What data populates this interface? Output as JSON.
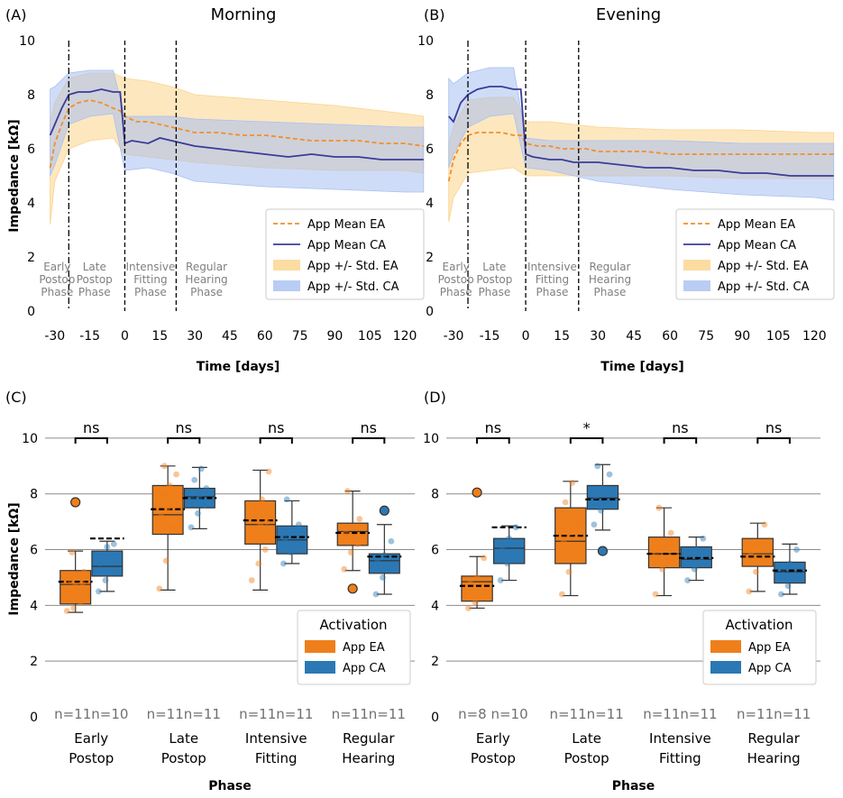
{
  "colors": {
    "ea": "#f28e2b",
    "ea_box": "#ef7f1a",
    "ca_line": "#3b3b98",
    "ca_box": "#2b78b4",
    "ea_band": "#fbd38a",
    "ca_band": "#a8bff0",
    "grid": "#8c8c8c",
    "phase_text": "#808080"
  },
  "panels": {
    "A": {
      "letter": "(A)",
      "title": "Morning"
    },
    "B": {
      "letter": "(B)",
      "title": "Evening"
    },
    "C": {
      "letter": "(C)"
    },
    "D": {
      "letter": "(D)"
    }
  },
  "chart_data": [
    {
      "id": "A",
      "type": "line",
      "title": "Morning",
      "xlabel": "Time [days]",
      "ylabel": "Impedance [kΩ]",
      "xlim": [
        -33,
        130
      ],
      "ylim": [
        0,
        10
      ],
      "xticks": [
        -30,
        -15,
        0,
        15,
        30,
        45,
        60,
        75,
        90,
        105,
        120
      ],
      "xtick_labels": [
        "-30",
        "-15",
        "0",
        "15",
        "30",
        "45",
        "60",
        "75",
        "90",
        "105",
        "120"
      ],
      "yticks": [
        0,
        2,
        4,
        6,
        8,
        10
      ],
      "ytick_labels": [
        "0",
        "2",
        "4",
        "6",
        "8",
        "10"
      ],
      "phase_lines": [
        {
          "x": -24,
          "style": "dashdot"
        },
        {
          "x": 0,
          "style": "dashed"
        },
        {
          "x": 22,
          "style": "dashed"
        }
      ],
      "phase_labels": [
        {
          "x": -29,
          "lines": [
            "Early",
            "Postop",
            "Phase"
          ]
        },
        {
          "x": -13,
          "lines": [
            "Late",
            "Postop",
            "Phase"
          ]
        },
        {
          "x": 11,
          "lines": [
            "Intensive",
            "Fitting",
            "Phase"
          ]
        },
        {
          "x": 35,
          "lines": [
            "Regular",
            "Hearing",
            "Phase"
          ]
        }
      ],
      "legend": {
        "position": "lower-right",
        "entries": [
          "App Mean EA",
          "App Mean CA",
          "App +/- Std. EA",
          "App +/- Std. CA"
        ]
      },
      "series": [
        {
          "name": "App Mean EA",
          "x": [
            -32,
            -30,
            -27,
            -24,
            -20,
            -15,
            -10,
            -5,
            -2,
            0,
            5,
            10,
            15,
            20,
            25,
            30,
            40,
            50,
            60,
            70,
            80,
            90,
            100,
            110,
            120,
            128
          ],
          "y": [
            5.3,
            6.2,
            6.9,
            7.5,
            7.7,
            7.8,
            7.7,
            7.5,
            7.4,
            7.2,
            7.0,
            7.0,
            6.9,
            6.8,
            6.7,
            6.6,
            6.6,
            6.5,
            6.5,
            6.4,
            6.3,
            6.3,
            6.3,
            6.2,
            6.2,
            6.1
          ]
        },
        {
          "name": "App Mean CA",
          "x": [
            -32,
            -30,
            -27,
            -24,
            -20,
            -15,
            -10,
            -5,
            -2,
            0,
            3,
            10,
            15,
            20,
            25,
            30,
            40,
            50,
            60,
            70,
            80,
            90,
            100,
            110,
            120,
            128
          ],
          "y": [
            6.5,
            6.9,
            7.5,
            8.0,
            8.1,
            8.1,
            8.2,
            8.1,
            8.1,
            6.2,
            6.3,
            6.2,
            6.4,
            6.3,
            6.2,
            6.1,
            6.0,
            5.9,
            5.8,
            5.7,
            5.8,
            5.7,
            5.7,
            5.6,
            5.6,
            5.6
          ]
        },
        {
          "name": "App +/- Std. EA",
          "x": [
            -32,
            -30,
            -24,
            -15,
            -5,
            0,
            10,
            20,
            30,
            60,
            90,
            120,
            128
          ],
          "lower": [
            3.2,
            4.8,
            6.0,
            6.3,
            6.4,
            5.8,
            5.7,
            5.6,
            5.5,
            5.3,
            5.2,
            5.2,
            5.1
          ],
          "upper": [
            7.0,
            7.7,
            8.6,
            8.8,
            8.8,
            8.6,
            8.5,
            8.3,
            8.0,
            7.8,
            7.6,
            7.3,
            7.2
          ]
        },
        {
          "name": "App +/- Std. CA",
          "x": [
            -32,
            -30,
            -24,
            -15,
            -5,
            0,
            10,
            20,
            30,
            60,
            90,
            120,
            128
          ],
          "lower": [
            5.0,
            5.4,
            6.9,
            7.2,
            7.3,
            5.2,
            5.3,
            5.1,
            4.8,
            4.6,
            4.5,
            4.4,
            4.4
          ],
          "upper": [
            8.2,
            8.3,
            8.8,
            8.9,
            8.9,
            7.2,
            7.2,
            7.2,
            7.1,
            7.0,
            6.9,
            6.8,
            6.8
          ]
        }
      ]
    },
    {
      "id": "B",
      "type": "line",
      "title": "Evening",
      "xlabel": "Time [days]",
      "ylabel": "",
      "xlim": [
        -33,
        130
      ],
      "ylim": [
        0,
        10
      ],
      "xticks": [
        -30,
        -15,
        0,
        15,
        30,
        45,
        60,
        75,
        90,
        105,
        120
      ],
      "xtick_labels": [
        "-30",
        "-15",
        "0",
        "15",
        "30",
        "45",
        "60",
        "75",
        "90",
        "105",
        "120"
      ],
      "yticks": [
        0,
        2,
        4,
        6,
        8,
        10
      ],
      "ytick_labels": [
        "0",
        "2",
        "4",
        "6",
        "8",
        "10"
      ],
      "phase_lines": [
        {
          "x": -24,
          "style": "dashdot"
        },
        {
          "x": 0,
          "style": "dashed"
        },
        {
          "x": 22,
          "style": "dashed"
        }
      ],
      "phase_labels": [
        {
          "x": -29,
          "lines": [
            "Early",
            "Postop",
            "Phase"
          ]
        },
        {
          "x": -13,
          "lines": [
            "Late",
            "Postop",
            "Phase"
          ]
        },
        {
          "x": 11,
          "lines": [
            "Intensive",
            "Fitting",
            "Phase"
          ]
        },
        {
          "x": 35,
          "lines": [
            "Regular",
            "Hearing",
            "Phase"
          ]
        }
      ],
      "legend": {
        "position": "lower-right",
        "entries": [
          "App Mean EA",
          "App Mean CA",
          "App +/- Std. EA",
          "App +/- Std. CA"
        ]
      },
      "series": [
        {
          "name": "App Mean EA",
          "x": [
            -32,
            -30,
            -27,
            -24,
            -20,
            -15,
            -10,
            -5,
            -2,
            0,
            5,
            10,
            15,
            20,
            25,
            30,
            40,
            50,
            60,
            70,
            80,
            90,
            100,
            110,
            120,
            128
          ],
          "y": [
            4.8,
            5.6,
            6.2,
            6.5,
            6.6,
            6.6,
            6.6,
            6.5,
            6.5,
            6.2,
            6.1,
            6.1,
            6.0,
            6.0,
            6.0,
            5.9,
            5.9,
            5.9,
            5.8,
            5.8,
            5.8,
            5.8,
            5.8,
            5.8,
            5.8,
            5.8
          ]
        },
        {
          "name": "App Mean CA",
          "x": [
            -32,
            -30,
            -27,
            -24,
            -20,
            -15,
            -10,
            -5,
            -2,
            0,
            3,
            10,
            15,
            20,
            25,
            30,
            40,
            50,
            60,
            70,
            80,
            90,
            100,
            110,
            120,
            128
          ],
          "y": [
            7.2,
            7.0,
            7.7,
            8.0,
            8.2,
            8.3,
            8.3,
            8.2,
            8.2,
            5.8,
            5.7,
            5.6,
            5.6,
            5.5,
            5.5,
            5.5,
            5.4,
            5.3,
            5.3,
            5.2,
            5.2,
            5.1,
            5.1,
            5.0,
            5.0,
            5.0
          ]
        },
        {
          "name": "App +/- Std. EA",
          "x": [
            -32,
            -30,
            -24,
            -15,
            -5,
            0,
            10,
            20,
            30,
            60,
            90,
            120,
            128
          ],
          "lower": [
            3.3,
            4.2,
            5.1,
            5.2,
            5.3,
            5.0,
            5.0,
            5.0,
            5.0,
            5.0,
            4.9,
            4.9,
            4.9
          ],
          "upper": [
            6.2,
            6.8,
            7.8,
            7.9,
            7.9,
            7.0,
            7.0,
            6.9,
            6.8,
            6.7,
            6.7,
            6.6,
            6.6
          ]
        },
        {
          "name": "App +/- Std. CA",
          "x": [
            -32,
            -30,
            -24,
            -15,
            -5,
            0,
            10,
            20,
            30,
            60,
            90,
            120,
            128
          ],
          "lower": [
            5.3,
            5.8,
            6.8,
            7.2,
            7.3,
            5.3,
            5.2,
            5.0,
            4.8,
            4.5,
            4.3,
            4.2,
            4.1
          ],
          "upper": [
            8.6,
            8.4,
            8.8,
            9.0,
            9.0,
            6.4,
            6.3,
            6.3,
            6.3,
            6.3,
            6.2,
            6.2,
            6.2
          ]
        }
      ]
    },
    {
      "id": "C",
      "type": "box",
      "xlabel": "Phase",
      "ylabel": "Impedance [kΩ]",
      "ylim": [
        0,
        11
      ],
      "yticks": [
        0,
        2,
        4,
        6,
        8,
        10
      ],
      "ytick_labels": [
        "0",
        "2",
        "4",
        "6",
        "8",
        "10"
      ],
      "categories": [
        "Early Postop",
        "Late Postop",
        "Intensive Fitting",
        "Regular Hearing"
      ],
      "category_lines": [
        [
          "Early",
          "Postop"
        ],
        [
          "Late",
          "Postop"
        ],
        [
          "Intensive",
          "Fitting"
        ],
        [
          "Regular",
          "Hearing"
        ]
      ],
      "legend": {
        "title": "Activation",
        "position": "lower-right",
        "entries": [
          "App EA",
          "App CA"
        ]
      },
      "significance": [
        "ns",
        "ns",
        "ns",
        "ns"
      ],
      "n_labels": [
        "n=11n=10",
        "n=11n=11",
        "n=11n=11",
        "n=11n=11"
      ],
      "boxes": [
        [
          {
            "q1": 4.05,
            "median": 4.75,
            "q3": 5.25,
            "mean": 4.85,
            "whislo": 3.75,
            "whishi": 5.95,
            "fliers": [
              7.7
            ],
            "points": [
              3.8,
              3.9,
              4.1,
              4.5,
              4.7,
              4.8,
              4.9,
              5.1,
              5.2,
              5.9
            ]
          },
          {
            "q1": 5.05,
            "median": 5.4,
            "q3": 5.95,
            "mean": 6.4,
            "whislo": 4.5,
            "whishi": 6.3,
            "fliers": [],
            "points": [
              4.5,
              4.9,
              5.2,
              5.5,
              6.1,
              6.2
            ]
          }
        ],
        [
          {
            "q1": 6.55,
            "median": 7.25,
            "q3": 8.3,
            "mean": 7.45,
            "whislo": 4.55,
            "whishi": 9.0,
            "fliers": [],
            "points": [
              4.6,
              5.6,
              6.8,
              7.2,
              7.5,
              7.6,
              8.0,
              8.3,
              8.7,
              9.0
            ]
          },
          {
            "q1": 7.5,
            "median": 7.9,
            "q3": 8.2,
            "mean": 7.85,
            "whislo": 6.75,
            "whishi": 8.95,
            "fliers": [],
            "points": [
              6.8,
              7.3,
              7.6,
              7.8,
              7.9,
              8.2,
              8.5,
              8.9
            ]
          }
        ],
        [
          {
            "q1": 6.2,
            "median": 6.9,
            "q3": 7.75,
            "mean": 7.05,
            "whislo": 4.55,
            "whishi": 8.85,
            "fliers": [],
            "points": [
              4.9,
              5.5,
              6.0,
              6.5,
              6.9,
              7.0,
              7.5,
              7.8,
              8.8
            ]
          },
          {
            "q1": 5.85,
            "median": 6.35,
            "q3": 6.85,
            "mean": 6.45,
            "whislo": 5.5,
            "whishi": 7.75,
            "fliers": [],
            "points": [
              5.5,
              5.9,
              6.2,
              6.4,
              6.6,
              6.9,
              7.8
            ]
          }
        ],
        [
          {
            "q1": 6.15,
            "median": 6.65,
            "q3": 6.95,
            "mean": 6.6,
            "whislo": 5.25,
            "whishi": 8.1,
            "fliers": [
              4.6
            ],
            "points": [
              5.3,
              5.9,
              6.2,
              6.6,
              6.8,
              7.1,
              8.1
            ]
          },
          {
            "q1": 5.15,
            "median": 5.6,
            "q3": 5.85,
            "mean": 5.75,
            "whislo": 4.4,
            "whishi": 6.9,
            "fliers": [
              7.4
            ],
            "points": [
              4.4,
              5.0,
              5.3,
              5.6,
              5.8,
              6.3
            ]
          }
        ]
      ]
    },
    {
      "id": "D",
      "type": "box",
      "xlabel": "Phase",
      "ylabel": "",
      "ylim": [
        0,
        11
      ],
      "yticks": [
        0,
        2,
        4,
        6,
        8,
        10
      ],
      "ytick_labels": [
        "0",
        "2",
        "4",
        "6",
        "8",
        "10"
      ],
      "categories": [
        "Early Postop",
        "Late Postop",
        "Intensive Fitting",
        "Regular Hearing"
      ],
      "category_lines": [
        [
          "Early",
          "Postop"
        ],
        [
          "Late",
          "Postop"
        ],
        [
          "Intensive",
          "Fitting"
        ],
        [
          "Regular",
          "Hearing"
        ]
      ],
      "legend": {
        "title": "Activation",
        "position": "lower-right",
        "entries": [
          "App EA",
          "App CA"
        ]
      },
      "significance": [
        "ns",
        "*",
        "ns",
        "ns"
      ],
      "n_labels": [
        "n=8 n=10",
        "n=11n=11",
        "n=11n=11",
        "n=11n=11"
      ],
      "boxes": [
        [
          {
            "q1": 4.15,
            "median": 4.85,
            "q3": 5.05,
            "mean": 4.7,
            "whislo": 3.9,
            "whishi": 5.75,
            "fliers": [
              8.05
            ],
            "points": [
              3.9,
              4.1,
              4.4,
              4.9,
              5.0,
              5.7
            ]
          },
          {
            "q1": 5.5,
            "median": 6.05,
            "q3": 6.4,
            "mean": 6.8,
            "whislo": 4.9,
            "whishi": 6.85,
            "fliers": [],
            "points": [
              4.9,
              5.5,
              5.9,
              6.1,
              6.4,
              6.8
            ]
          }
        ],
        [
          {
            "q1": 5.5,
            "median": 6.3,
            "q3": 7.5,
            "mean": 6.5,
            "whislo": 4.35,
            "whishi": 8.45,
            "fliers": [],
            "points": [
              4.4,
              5.2,
              5.9,
              6.3,
              6.6,
              7.0,
              7.7,
              8.4
            ]
          },
          {
            "q1": 7.45,
            "median": 7.85,
            "q3": 8.3,
            "mean": 7.8,
            "whislo": 6.7,
            "whishi": 9.05,
            "fliers": [
              5.95
            ],
            "points": [
              6.9,
              7.4,
              7.7,
              7.9,
              8.2,
              8.7,
              9.0
            ]
          }
        ],
        [
          {
            "q1": 5.35,
            "median": 5.85,
            "q3": 6.45,
            "mean": 5.85,
            "whislo": 4.35,
            "whishi": 7.5,
            "fliers": [],
            "points": [
              4.4,
              5.3,
              5.6,
              5.9,
              6.1,
              6.6,
              7.5
            ]
          },
          {
            "q1": 5.35,
            "median": 5.65,
            "q3": 6.1,
            "mean": 5.7,
            "whislo": 4.9,
            "whishi": 6.45,
            "fliers": [],
            "points": [
              4.9,
              5.3,
              5.6,
              5.8,
              6.0,
              6.4
            ]
          }
        ],
        [
          {
            "q1": 5.4,
            "median": 5.85,
            "q3": 6.4,
            "mean": 5.75,
            "whislo": 4.5,
            "whishi": 6.95,
            "fliers": [],
            "points": [
              4.5,
              5.2,
              5.6,
              5.9,
              6.2,
              6.9
            ]
          },
          {
            "q1": 4.8,
            "median": 5.2,
            "q3": 5.55,
            "mean": 5.25,
            "whislo": 4.4,
            "whishi": 6.2,
            "fliers": [],
            "points": [
              4.4,
              4.7,
              5.1,
              5.3,
              5.5,
              6.0
            ]
          }
        ]
      ]
    }
  ]
}
